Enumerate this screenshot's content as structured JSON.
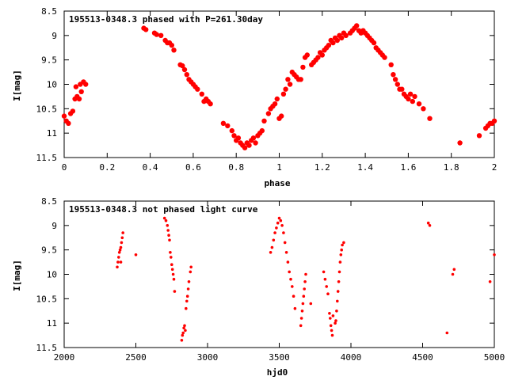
{
  "chart_data": [
    {
      "type": "scatter",
      "title": "195513-0348.3 phased with P=261.30day",
      "xlabel": "phase",
      "ylabel": "I[mag]",
      "xlim": [
        0,
        2
      ],
      "ylim": [
        8.5,
        11.5
      ],
      "y_inverted": true,
      "x_ticks": [
        "0",
        "0.2",
        "0.4",
        "0.6",
        "0.8",
        "1",
        "1.2",
        "1.4",
        "1.6",
        "1.8",
        "2"
      ],
      "y_ticks": [
        "8.5",
        "9",
        "9.5",
        "10",
        "10.5",
        "11",
        "11.5"
      ],
      "color": "#ff0000",
      "marker": "filled-circle-large",
      "points": [
        [
          0.0,
          10.65
        ],
        [
          0.01,
          10.75
        ],
        [
          0.02,
          10.8
        ],
        [
          0.03,
          10.6
        ],
        [
          0.04,
          10.55
        ],
        [
          0.05,
          10.3
        ],
        [
          0.055,
          10.05
        ],
        [
          0.06,
          10.25
        ],
        [
          0.07,
          10.3
        ],
        [
          0.075,
          10.0
        ],
        [
          0.08,
          10.15
        ],
        [
          0.09,
          9.95
        ],
        [
          0.1,
          10.0
        ],
        [
          0.37,
          8.85
        ],
        [
          0.38,
          8.88
        ],
        [
          0.42,
          8.95
        ],
        [
          0.43,
          8.98
        ],
        [
          0.45,
          9.0
        ],
        [
          0.47,
          9.1
        ],
        [
          0.48,
          9.15
        ],
        [
          0.49,
          9.15
        ],
        [
          0.5,
          9.2
        ],
        [
          0.51,
          9.3
        ],
        [
          0.54,
          9.6
        ],
        [
          0.55,
          9.62
        ],
        [
          0.56,
          9.7
        ],
        [
          0.57,
          9.8
        ],
        [
          0.58,
          9.9
        ],
        [
          0.59,
          9.95
        ],
        [
          0.6,
          10.0
        ],
        [
          0.61,
          10.05
        ],
        [
          0.62,
          10.1
        ],
        [
          0.64,
          10.2
        ],
        [
          0.65,
          10.35
        ],
        [
          0.66,
          10.3
        ],
        [
          0.67,
          10.35
        ],
        [
          0.68,
          10.4
        ],
        [
          0.74,
          10.8
        ],
        [
          0.76,
          10.85
        ],
        [
          0.78,
          10.95
        ],
        [
          0.79,
          11.05
        ],
        [
          0.8,
          11.15
        ],
        [
          0.81,
          11.1
        ],
        [
          0.82,
          11.2
        ],
        [
          0.83,
          11.25
        ],
        [
          0.84,
          11.3
        ],
        [
          0.85,
          11.2
        ],
        [
          0.86,
          11.25
        ],
        [
          0.87,
          11.15
        ],
        [
          0.88,
          11.1
        ],
        [
          0.89,
          11.2
        ],
        [
          0.9,
          11.05
        ],
        [
          0.91,
          11.0
        ],
        [
          0.92,
          10.95
        ],
        [
          0.93,
          10.75
        ],
        [
          0.95,
          10.6
        ],
        [
          0.96,
          10.5
        ],
        [
          0.97,
          10.45
        ],
        [
          0.98,
          10.4
        ],
        [
          0.99,
          10.3
        ],
        [
          1.0,
          10.7
        ],
        [
          1.01,
          10.65
        ],
        [
          1.02,
          10.2
        ],
        [
          1.03,
          10.1
        ],
        [
          1.04,
          9.9
        ],
        [
          1.05,
          10.0
        ],
        [
          1.06,
          9.75
        ],
        [
          1.07,
          9.8
        ],
        [
          1.08,
          9.85
        ],
        [
          1.09,
          9.9
        ],
        [
          1.1,
          9.9
        ],
        [
          1.11,
          9.65
        ],
        [
          1.12,
          9.45
        ],
        [
          1.13,
          9.4
        ],
        [
          1.15,
          9.6
        ],
        [
          1.16,
          9.55
        ],
        [
          1.17,
          9.5
        ],
        [
          1.18,
          9.45
        ],
        [
          1.19,
          9.35
        ],
        [
          1.2,
          9.4
        ],
        [
          1.21,
          9.3
        ],
        [
          1.22,
          9.25
        ],
        [
          1.23,
          9.2
        ],
        [
          1.24,
          9.1
        ],
        [
          1.25,
          9.15
        ],
        [
          1.26,
          9.05
        ],
        [
          1.27,
          9.1
        ],
        [
          1.28,
          9.0
        ],
        [
          1.29,
          9.05
        ],
        [
          1.3,
          8.95
        ],
        [
          1.31,
          9.0
        ],
        [
          1.33,
          8.95
        ],
        [
          1.34,
          8.9
        ],
        [
          1.35,
          8.85
        ],
        [
          1.36,
          8.8
        ],
        [
          1.37,
          8.9
        ],
        [
          1.38,
          8.95
        ],
        [
          1.39,
          8.9
        ],
        [
          1.4,
          8.95
        ],
        [
          1.41,
          9.0
        ],
        [
          1.42,
          9.05
        ],
        [
          1.43,
          9.1
        ],
        [
          1.44,
          9.15
        ],
        [
          1.45,
          9.25
        ],
        [
          1.46,
          9.3
        ],
        [
          1.47,
          9.35
        ],
        [
          1.48,
          9.4
        ],
        [
          1.49,
          9.45
        ],
        [
          1.52,
          9.6
        ],
        [
          1.53,
          9.8
        ],
        [
          1.54,
          9.9
        ],
        [
          1.55,
          10.0
        ],
        [
          1.56,
          10.1
        ],
        [
          1.57,
          10.1
        ],
        [
          1.58,
          10.2
        ],
        [
          1.59,
          10.25
        ],
        [
          1.6,
          10.3
        ],
        [
          1.61,
          10.2
        ],
        [
          1.62,
          10.35
        ],
        [
          1.63,
          10.25
        ],
        [
          1.65,
          10.4
        ],
        [
          1.67,
          10.5
        ],
        [
          1.7,
          10.7
        ],
        [
          1.84,
          11.2
        ],
        [
          1.93,
          11.05
        ],
        [
          1.96,
          10.9
        ],
        [
          1.97,
          10.85
        ],
        [
          1.98,
          10.8
        ],
        [
          1.99,
          10.8
        ],
        [
          2.0,
          10.75
        ]
      ]
    },
    {
      "type": "scatter",
      "title": "195513-0348.3 not phased light curve",
      "xlabel": "hjd0",
      "ylabel": "I[mag]",
      "xlim": [
        2000,
        5000
      ],
      "ylim": [
        8.5,
        11.5
      ],
      "y_inverted": true,
      "x_ticks": [
        "2000",
        "2500",
        "3000",
        "3500",
        "4000",
        "4500",
        "5000"
      ],
      "y_ticks": [
        "8.5",
        "9",
        "9.5",
        "10",
        "10.5",
        "11",
        "11.5"
      ],
      "color": "#ff0000",
      "marker": "filled-circle-small",
      "points": [
        [
          2370,
          9.85
        ],
        [
          2375,
          9.75
        ],
        [
          2380,
          9.65
        ],
        [
          2385,
          9.55
        ],
        [
          2390,
          9.5
        ],
        [
          2395,
          9.45
        ],
        [
          2400,
          9.35
        ],
        [
          2405,
          9.25
        ],
        [
          2410,
          9.15
        ],
        [
          2395,
          9.75
        ],
        [
          2500,
          9.6
        ],
        [
          2700,
          8.85
        ],
        [
          2710,
          8.9
        ],
        [
          2720,
          9.0
        ],
        [
          2725,
          9.1
        ],
        [
          2730,
          9.2
        ],
        [
          2735,
          9.3
        ],
        [
          2740,
          9.55
        ],
        [
          2745,
          9.65
        ],
        [
          2750,
          9.8
        ],
        [
          2755,
          9.9
        ],
        [
          2760,
          10.0
        ],
        [
          2765,
          10.1
        ],
        [
          2770,
          10.35
        ],
        [
          2820,
          11.35
        ],
        [
          2825,
          11.25
        ],
        [
          2830,
          11.2
        ],
        [
          2835,
          11.1
        ],
        [
          2840,
          11.05
        ],
        [
          2845,
          11.15
        ],
        [
          2850,
          10.7
        ],
        [
          2855,
          10.55
        ],
        [
          2860,
          10.45
        ],
        [
          2865,
          10.3
        ],
        [
          2870,
          10.15
        ],
        [
          2880,
          9.95
        ],
        [
          2885,
          9.85
        ],
        [
          3440,
          9.55
        ],
        [
          3450,
          9.45
        ],
        [
          3460,
          9.3
        ],
        [
          3470,
          9.15
        ],
        [
          3480,
          9.05
        ],
        [
          3490,
          8.95
        ],
        [
          3500,
          8.85
        ],
        [
          3510,
          8.9
        ],
        [
          3520,
          9.0
        ],
        [
          3530,
          9.15
        ],
        [
          3540,
          9.35
        ],
        [
          3550,
          9.55
        ],
        [
          3560,
          9.75
        ],
        [
          3570,
          9.95
        ],
        [
          3580,
          10.1
        ],
        [
          3590,
          10.25
        ],
        [
          3600,
          10.45
        ],
        [
          3610,
          10.7
        ],
        [
          3650,
          11.05
        ],
        [
          3655,
          10.9
        ],
        [
          3660,
          10.75
        ],
        [
          3665,
          10.6
        ],
        [
          3670,
          10.45
        ],
        [
          3675,
          10.3
        ],
        [
          3680,
          10.15
        ],
        [
          3685,
          10.0
        ],
        [
          3720,
          10.6
        ],
        [
          3810,
          9.95
        ],
        [
          3820,
          10.1
        ],
        [
          3830,
          10.25
        ],
        [
          3840,
          10.4
        ],
        [
          3850,
          10.8
        ],
        [
          3855,
          10.9
        ],
        [
          3860,
          11.05
        ],
        [
          3865,
          11.15
        ],
        [
          3870,
          11.25
        ],
        [
          3875,
          10.85
        ],
        [
          3890,
          11.0
        ],
        [
          3895,
          10.95
        ],
        [
          3900,
          10.75
        ],
        [
          3905,
          10.55
        ],
        [
          3910,
          10.35
        ],
        [
          3915,
          10.15
        ],
        [
          3920,
          9.95
        ],
        [
          3925,
          9.75
        ],
        [
          3930,
          9.6
        ],
        [
          3935,
          9.5
        ],
        [
          3940,
          9.4
        ],
        [
          3950,
          9.35
        ],
        [
          4540,
          8.95
        ],
        [
          4550,
          9.0
        ],
        [
          4670,
          11.2
        ],
        [
          4710,
          10.0
        ],
        [
          4720,
          9.9
        ],
        [
          4970,
          10.15
        ],
        [
          5000,
          9.6
        ]
      ]
    }
  ]
}
